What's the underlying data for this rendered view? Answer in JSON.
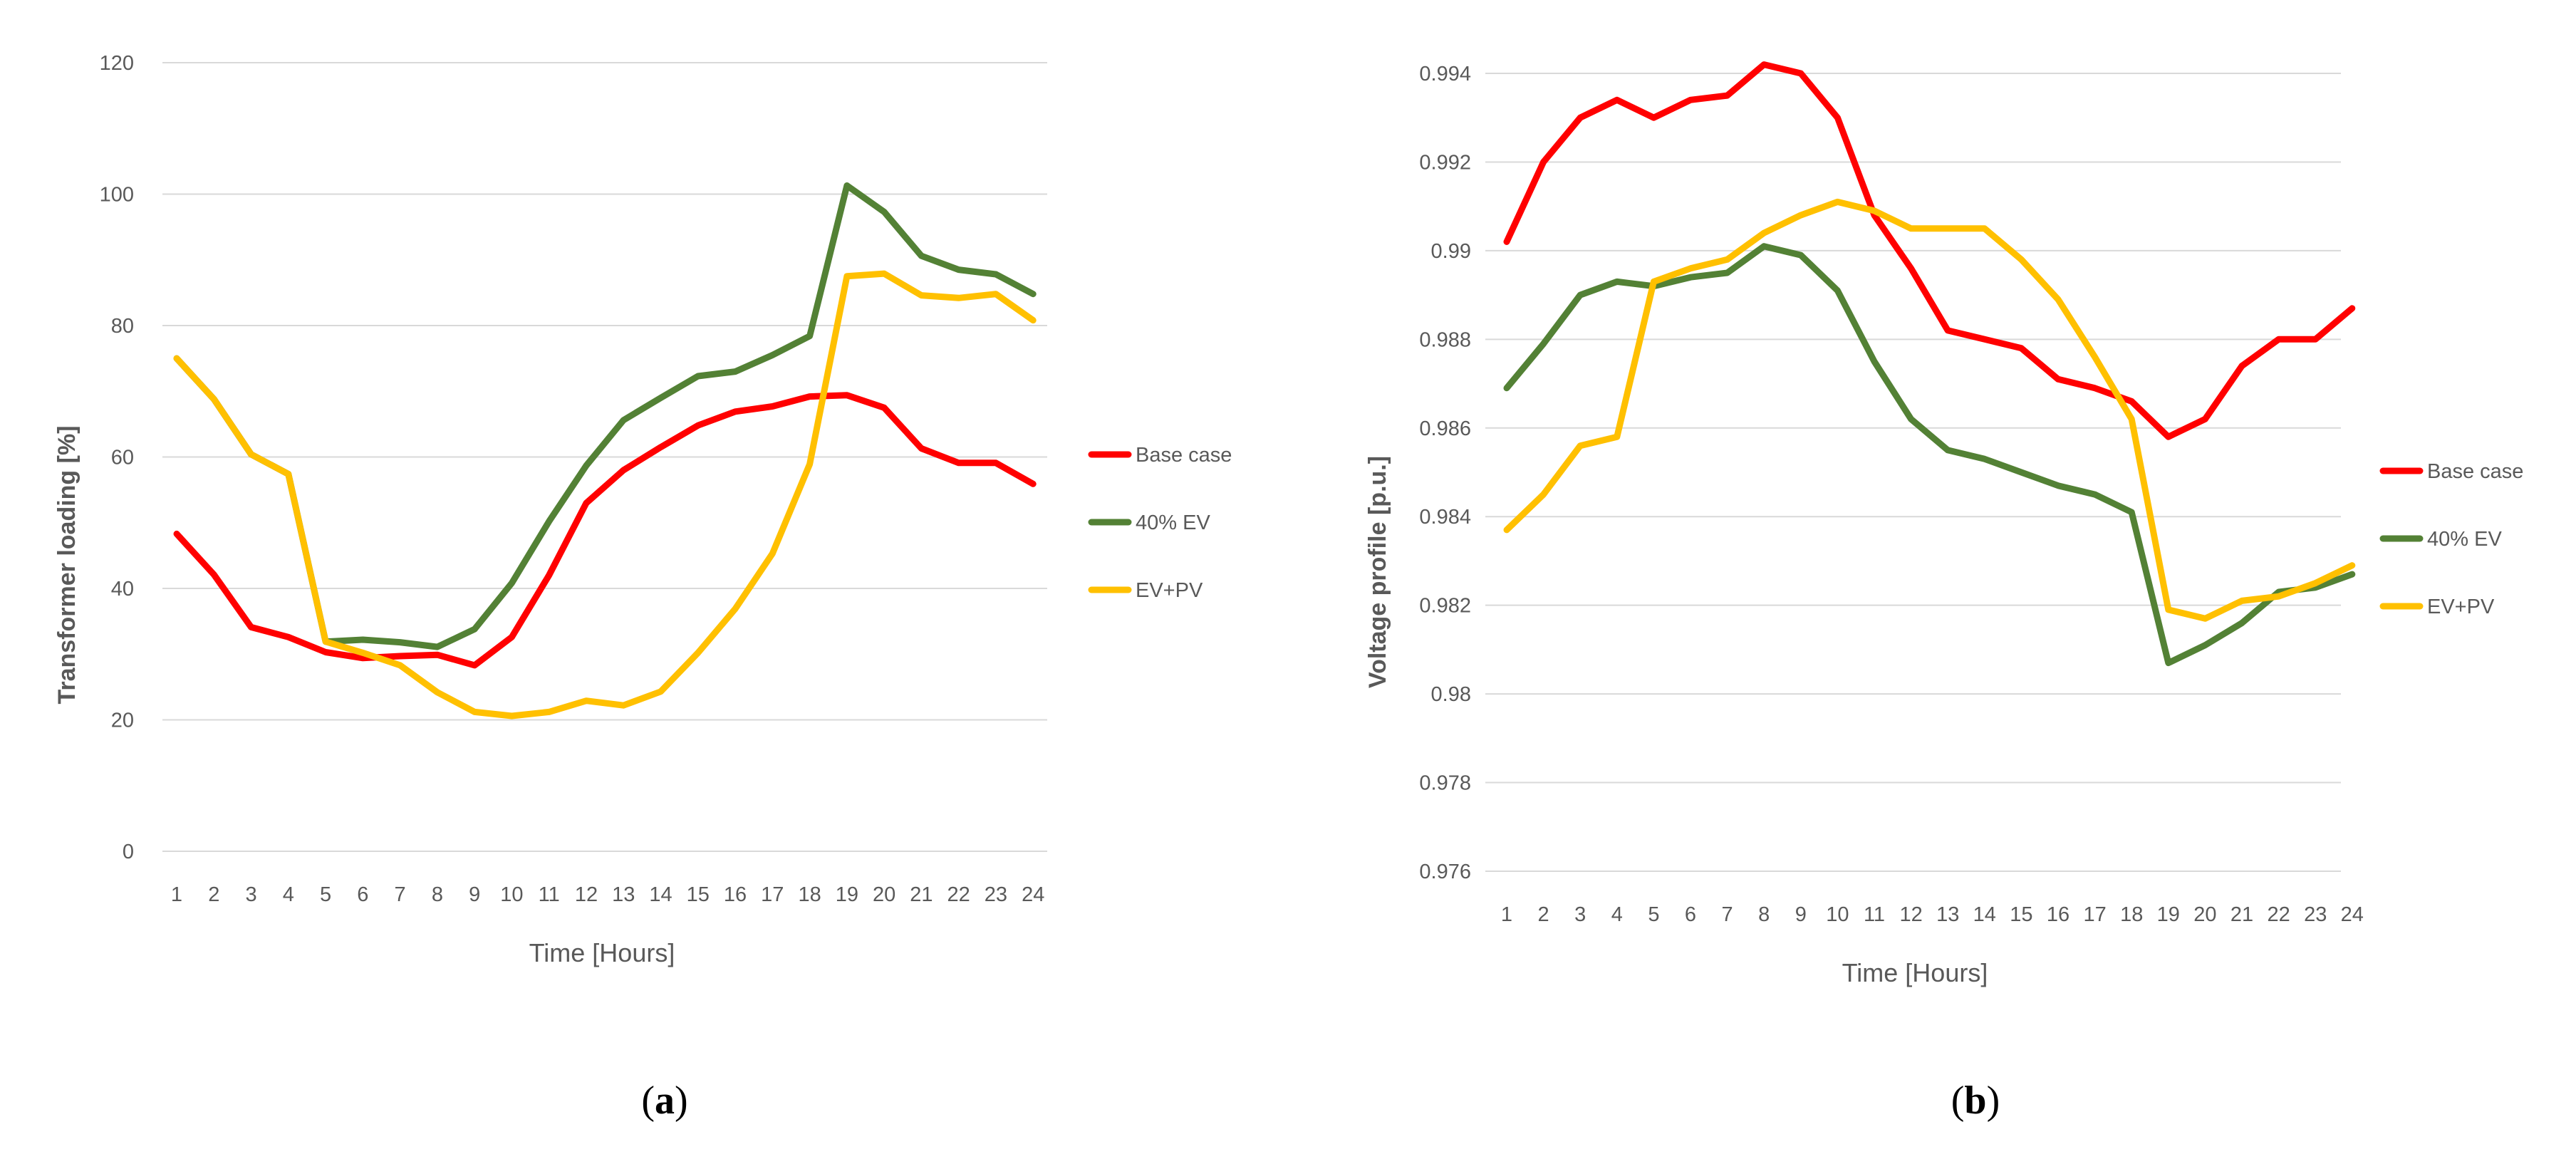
{
  "chart_data": [
    {
      "type": "line",
      "panel_label": "a",
      "title": "",
      "xlabel": "Time [Hours]",
      "ylabel": "Transformer loading [%]",
      "x": [
        1,
        2,
        3,
        4,
        5,
        6,
        7,
        8,
        9,
        10,
        11,
        12,
        13,
        14,
        15,
        16,
        17,
        18,
        19,
        20,
        21,
        22,
        23,
        24
      ],
      "ylim": [
        0,
        120
      ],
      "yticks": [
        "0",
        "20",
        "40",
        "60",
        "80",
        "100",
        "120"
      ],
      "grid": true,
      "legend_position": "right",
      "series": [
        {
          "name": "Base case",
          "color": "#ff0000",
          "values": [
            48.3,
            42.1,
            34.1,
            32.6,
            30.3,
            29.4,
            29.7,
            29.9,
            28.3,
            32.6,
            42.0,
            53.0,
            58.0,
            61.5,
            64.8,
            66.9,
            67.7,
            69.2,
            69.4,
            67.5,
            61.3,
            59.1,
            59.1,
            55.9
          ]
        },
        {
          "name": "40% EV",
          "color": "#538135",
          "values": [
            75.0,
            68.8,
            60.4,
            57.4,
            31.9,
            32.2,
            31.8,
            31.1,
            33.8,
            40.8,
            50.2,
            58.7,
            65.6,
            69.0,
            72.3,
            73.0,
            75.5,
            78.4,
            101.3,
            97.3,
            90.6,
            88.5,
            87.8,
            84.8
          ]
        },
        {
          "name": "EV+PV",
          "color": "#ffc000",
          "values": [
            75.0,
            68.8,
            60.4,
            57.4,
            31.9,
            30.2,
            28.3,
            24.2,
            21.2,
            20.6,
            21.2,
            22.9,
            22.2,
            24.3,
            30.2,
            36.9,
            45.3,
            58.9,
            87.5,
            87.9,
            84.6,
            84.2,
            84.8,
            80.8
          ]
        }
      ]
    },
    {
      "type": "line",
      "panel_label": "b",
      "title": "",
      "xlabel": "Time [Hours]",
      "ylabel": "Voltage profile [p.u.]",
      "x": [
        1,
        2,
        3,
        4,
        5,
        6,
        7,
        8,
        9,
        10,
        11,
        12,
        13,
        14,
        15,
        16,
        17,
        18,
        19,
        20,
        21,
        22,
        23,
        24
      ],
      "ylim": [
        0.976,
        0.994
      ],
      "yticks": [
        "0.976",
        "0.978",
        "0.98",
        "0.982",
        "0.984",
        "0.986",
        "0.988",
        "0.99",
        "0.992",
        "0.994"
      ],
      "grid": true,
      "legend_position": "right",
      "series": [
        {
          "name": "Base case",
          "color": "#ff0000",
          "values": [
            0.9902,
            0.992,
            0.993,
            0.9934,
            0.993,
            0.9934,
            0.9935,
            0.9942,
            0.994,
            0.993,
            0.9908,
            0.9896,
            0.9882,
            0.988,
            0.9878,
            0.9871,
            0.9869,
            0.9866,
            0.9858,
            0.9862,
            0.9874,
            0.988,
            0.988,
            0.9887
          ]
        },
        {
          "name": "40% EV",
          "color": "#538135",
          "values": [
            0.9869,
            0.9879,
            0.989,
            0.9893,
            0.9892,
            0.9894,
            0.9895,
            0.9901,
            0.9899,
            0.9891,
            0.9875,
            0.9862,
            0.9855,
            0.9853,
            0.985,
            0.9847,
            0.9845,
            0.9841,
            0.9807,
            0.9811,
            0.9816,
            0.9823,
            0.9824,
            0.9827
          ]
        },
        {
          "name": "EV+PV",
          "color": "#ffc000",
          "values": [
            0.9837,
            0.9845,
            0.9856,
            0.9858,
            0.9893,
            0.9896,
            0.9898,
            0.9904,
            0.9908,
            0.9911,
            0.9909,
            0.9905,
            0.9905,
            0.9905,
            0.9898,
            0.9889,
            0.9876,
            0.9862,
            0.9819,
            0.9817,
            0.9821,
            0.9822,
            0.9825,
            0.9829
          ]
        }
      ]
    }
  ]
}
